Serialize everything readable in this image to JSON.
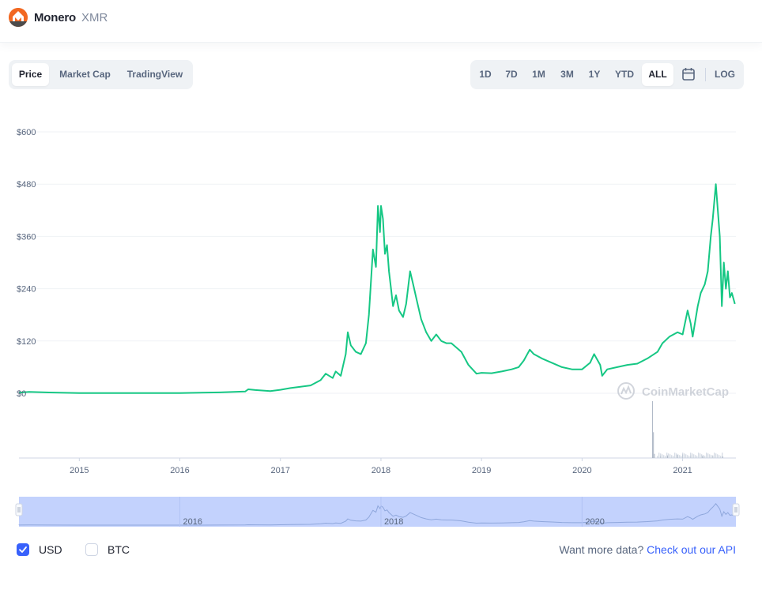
{
  "header": {
    "coin_name": "Monero",
    "coin_symbol": "XMR",
    "logo_icon": "monero-logo-icon"
  },
  "view_tabs": [
    {
      "label": "Price",
      "active": true
    },
    {
      "label": "Market Cap",
      "active": false
    },
    {
      "label": "TradingView",
      "active": false
    }
  ],
  "range_tabs": [
    {
      "label": "1D",
      "active": false
    },
    {
      "label": "7D",
      "active": false
    },
    {
      "label": "1M",
      "active": false
    },
    {
      "label": "3M",
      "active": false
    },
    {
      "label": "1Y",
      "active": false
    },
    {
      "label": "YTD",
      "active": false
    },
    {
      "label": "ALL",
      "active": true
    }
  ],
  "calendar_icon": "calendar-icon",
  "log_label": "LOG",
  "chart_data": {
    "type": "line",
    "series": [
      {
        "name": "USD",
        "color": "#16c784",
        "points": [
          [
            2014.4,
            1.5
          ],
          [
            2014.5,
            3.0
          ],
          [
            2014.7,
            1.8
          ],
          [
            2015.0,
            0.5
          ],
          [
            2015.5,
            0.5
          ],
          [
            2016.0,
            0.6
          ],
          [
            2016.4,
            2.0
          ],
          [
            2016.65,
            4.0
          ],
          [
            2016.68,
            9.0
          ],
          [
            2016.75,
            7.5
          ],
          [
            2016.9,
            5.0
          ],
          [
            2017.0,
            8.0
          ],
          [
            2017.1,
            12.0
          ],
          [
            2017.2,
            15.0
          ],
          [
            2017.3,
            18.0
          ],
          [
            2017.4,
            30.0
          ],
          [
            2017.45,
            45.0
          ],
          [
            2017.52,
            35.0
          ],
          [
            2017.55,
            50.0
          ],
          [
            2017.6,
            40.0
          ],
          [
            2017.65,
            90.0
          ],
          [
            2017.67,
            140.0
          ],
          [
            2017.7,
            110.0
          ],
          [
            2017.75,
            95.0
          ],
          [
            2017.8,
            90.0
          ],
          [
            2017.85,
            115.0
          ],
          [
            2017.88,
            180.0
          ],
          [
            2017.92,
            330.0
          ],
          [
            2017.95,
            290.0
          ],
          [
            2017.97,
            430.0
          ],
          [
            2017.99,
            370.0
          ],
          [
            2018.0,
            430.0
          ],
          [
            2018.02,
            400.0
          ],
          [
            2018.04,
            320.0
          ],
          [
            2018.06,
            340.0
          ],
          [
            2018.08,
            280.0
          ],
          [
            2018.1,
            240.0
          ],
          [
            2018.12,
            200.0
          ],
          [
            2018.15,
            225.0
          ],
          [
            2018.18,
            190.0
          ],
          [
            2018.22,
            175.0
          ],
          [
            2018.25,
            205.0
          ],
          [
            2018.29,
            280.0
          ],
          [
            2018.32,
            250.0
          ],
          [
            2018.36,
            210.0
          ],
          [
            2018.4,
            170.0
          ],
          [
            2018.45,
            140.0
          ],
          [
            2018.5,
            120.0
          ],
          [
            2018.55,
            135.0
          ],
          [
            2018.6,
            120.0
          ],
          [
            2018.65,
            115.0
          ],
          [
            2018.7,
            115.0
          ],
          [
            2018.75,
            105.0
          ],
          [
            2018.8,
            95.0
          ],
          [
            2018.87,
            65.0
          ],
          [
            2018.95,
            45.0
          ],
          [
            2019.0,
            47.0
          ],
          [
            2019.1,
            46.0
          ],
          [
            2019.2,
            50.0
          ],
          [
            2019.3,
            55.0
          ],
          [
            2019.37,
            60.0
          ],
          [
            2019.42,
            75.0
          ],
          [
            2019.48,
            100.0
          ],
          [
            2019.52,
            90.0
          ],
          [
            2019.6,
            80.0
          ],
          [
            2019.7,
            70.0
          ],
          [
            2019.8,
            60.0
          ],
          [
            2019.9,
            55.0
          ],
          [
            2020.0,
            55.0
          ],
          [
            2020.08,
            70.0
          ],
          [
            2020.12,
            90.0
          ],
          [
            2020.18,
            65.0
          ],
          [
            2020.2,
            40.0
          ],
          [
            2020.25,
            55.0
          ],
          [
            2020.35,
            60.0
          ],
          [
            2020.45,
            65.0
          ],
          [
            2020.55,
            68.0
          ],
          [
            2020.65,
            80.0
          ],
          [
            2020.75,
            95.0
          ],
          [
            2020.8,
            115.0
          ],
          [
            2020.87,
            130.0
          ],
          [
            2020.95,
            140.0
          ],
          [
            2021.0,
            135.0
          ],
          [
            2021.05,
            190.0
          ],
          [
            2021.08,
            160.0
          ],
          [
            2021.1,
            130.0
          ],
          [
            2021.15,
            200.0
          ],
          [
            2021.18,
            230.0
          ],
          [
            2021.22,
            250.0
          ],
          [
            2021.25,
            280.0
          ],
          [
            2021.28,
            360.0
          ],
          [
            2021.3,
            400.0
          ],
          [
            2021.33,
            480.0
          ],
          [
            2021.35,
            420.0
          ],
          [
            2021.37,
            360.0
          ],
          [
            2021.39,
            200.0
          ],
          [
            2021.41,
            300.0
          ],
          [
            2021.43,
            240.0
          ],
          [
            2021.45,
            280.0
          ],
          [
            2021.47,
            220.0
          ],
          [
            2021.49,
            230.0
          ],
          [
            2021.52,
            205.0
          ]
        ]
      }
    ],
    "volume_spikes": [
      [
        2020.7,
        110
      ],
      [
        2020.71,
        50
      ],
      [
        2020.72,
        8
      ],
      [
        2020.78,
        4
      ],
      [
        2020.85,
        5
      ],
      [
        2020.95,
        6
      ],
      [
        2021.0,
        7
      ],
      [
        2021.08,
        5
      ],
      [
        2021.2,
        4
      ],
      [
        2021.3,
        5
      ],
      [
        2021.4,
        3
      ]
    ],
    "y_ticks": [
      "$600",
      "$480",
      "$360",
      "$240",
      "$120",
      "$0"
    ],
    "y_tick_values": [
      600,
      480,
      360,
      240,
      120,
      0
    ],
    "x_ticks": [
      "2015",
      "2016",
      "2017",
      "2018",
      "2019",
      "2020",
      "2021"
    ],
    "x_tick_values": [
      2015,
      2016,
      2017,
      2018,
      2019,
      2020,
      2021
    ],
    "xlim": [
      2014.4,
      2021.53
    ],
    "ylim": [
      0,
      600
    ],
    "grid": true,
    "watermark": "CoinMarketCap"
  },
  "navigator": {
    "labels": [
      "2016",
      "2018",
      "2020"
    ],
    "label_values": [
      2016,
      2018,
      2020
    ],
    "fill_color": "#c3d2fd",
    "line_color": "#8fa7dc"
  },
  "legend": [
    {
      "label": "USD",
      "checked": true
    },
    {
      "label": "BTC",
      "checked": false
    }
  ],
  "api": {
    "prompt": "Want more data?",
    "link": "Check out our API"
  }
}
